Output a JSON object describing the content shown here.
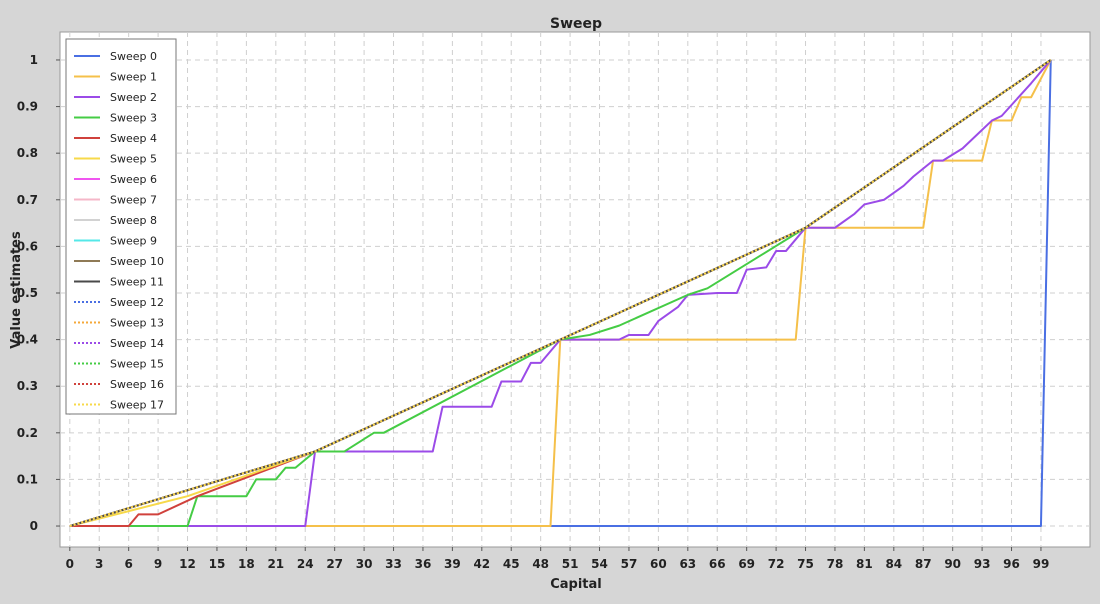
{
  "chart_data": {
    "type": "line",
    "title": "Sweep",
    "xlabel": "Capital",
    "ylabel": "Value estimates",
    "xlim": [
      -1,
      104
    ],
    "ylim": [
      -0.045,
      1.06
    ],
    "x_ticks": [
      0,
      3,
      6,
      9,
      12,
      15,
      18,
      21,
      24,
      27,
      30,
      33,
      36,
      39,
      42,
      45,
      48,
      51,
      54,
      57,
      60,
      63,
      66,
      69,
      72,
      75,
      78,
      81,
      84,
      87,
      90,
      93,
      96,
      99
    ],
    "y_ticks": [
      0,
      0.1,
      0.2,
      0.3,
      0.4,
      0.5,
      0.6,
      0.7,
      0.8,
      0.9,
      1
    ],
    "y_tick_labels": [
      "0",
      "0.1",
      "0.2",
      "0.3",
      "0.4",
      "0.5",
      "0.6",
      "0.7",
      "0.8",
      "0.9",
      "1"
    ],
    "grid": true,
    "legend_position": "top-left",
    "series": [
      {
        "name": "Sweep 0",
        "color": "#4a6fe3",
        "dashed": false,
        "points": [
          [
            0,
            0
          ],
          [
            99,
            0
          ],
          [
            100,
            1
          ]
        ]
      },
      {
        "name": "Sweep 1",
        "color": "#f5c04a",
        "dashed": false,
        "points": [
          [
            0,
            0
          ],
          [
            49,
            0
          ],
          [
            50,
            0.4
          ],
          [
            74,
            0.4
          ],
          [
            75,
            0.64
          ],
          [
            87,
            0.64
          ],
          [
            88,
            0.784
          ],
          [
            93,
            0.784
          ],
          [
            94,
            0.87
          ],
          [
            96,
            0.87
          ],
          [
            97,
            0.92
          ],
          [
            98,
            0.92
          ],
          [
            100,
            1
          ]
        ]
      },
      {
        "name": "Sweep 2",
        "color": "#9b4be8",
        "dashed": false,
        "points": [
          [
            0,
            0
          ],
          [
            24,
            0
          ],
          [
            25,
            0.16
          ],
          [
            37,
            0.16
          ],
          [
            38,
            0.256
          ],
          [
            43,
            0.256
          ],
          [
            44,
            0.31
          ],
          [
            46,
            0.31
          ],
          [
            47,
            0.35
          ],
          [
            48,
            0.35
          ],
          [
            50,
            0.4
          ],
          [
            56,
            0.4
          ],
          [
            57,
            0.41
          ],
          [
            59,
            0.41
          ],
          [
            60,
            0.44
          ],
          [
            62,
            0.47
          ],
          [
            63,
            0.496
          ],
          [
            66,
            0.5
          ],
          [
            68,
            0.5
          ],
          [
            69,
            0.55
          ],
          [
            71,
            0.555
          ],
          [
            72,
            0.59
          ],
          [
            73,
            0.59
          ],
          [
            75,
            0.64
          ],
          [
            78,
            0.64
          ],
          [
            80,
            0.67
          ],
          [
            81,
            0.69
          ],
          [
            83,
            0.7
          ],
          [
            85,
            0.73
          ],
          [
            86,
            0.75
          ],
          [
            88,
            0.784
          ],
          [
            89,
            0.784
          ],
          [
            91,
            0.81
          ],
          [
            94,
            0.87
          ],
          [
            95,
            0.88
          ],
          [
            98,
            0.95
          ],
          [
            100,
            1
          ]
        ]
      },
      {
        "name": "Sweep 3",
        "color": "#45cc45",
        "dashed": false,
        "points": [
          [
            0,
            0
          ],
          [
            12,
            0
          ],
          [
            13,
            0.064
          ],
          [
            18,
            0.064
          ],
          [
            19,
            0.1
          ],
          [
            21,
            0.1
          ],
          [
            22,
            0.125
          ],
          [
            23,
            0.125
          ],
          [
            25,
            0.16
          ],
          [
            28,
            0.16
          ],
          [
            31,
            0.2
          ],
          [
            32,
            0.2
          ],
          [
            50,
            0.4
          ],
          [
            53,
            0.41
          ],
          [
            56,
            0.43
          ],
          [
            63,
            0.496
          ],
          [
            65,
            0.51
          ],
          [
            75,
            0.64
          ],
          [
            100,
            1
          ]
        ]
      },
      {
        "name": "Sweep 4",
        "color": "#d0413c",
        "dashed": false,
        "points": [
          [
            0,
            0
          ],
          [
            6,
            0
          ],
          [
            7,
            0.025
          ],
          [
            9,
            0.025
          ],
          [
            13,
            0.064
          ],
          [
            25,
            0.16
          ],
          [
            50,
            0.4
          ],
          [
            75,
            0.64
          ],
          [
            100,
            1
          ]
        ]
      },
      {
        "name": "Sweep 5",
        "color": "#f7d94a",
        "dashed": false,
        "points": [
          [
            0,
            0
          ],
          [
            12,
            0.064
          ],
          [
            25,
            0.16
          ],
          [
            50,
            0.4
          ],
          [
            75,
            0.64
          ],
          [
            100,
            1
          ]
        ]
      },
      {
        "name": "Sweep 6",
        "color": "#f055f0",
        "dashed": false,
        "points": [
          [
            0,
            0
          ],
          [
            25,
            0.16
          ],
          [
            50,
            0.4
          ],
          [
            75,
            0.64
          ],
          [
            100,
            1
          ]
        ]
      },
      {
        "name": "Sweep 7",
        "color": "#f5b7c8",
        "dashed": false,
        "points": [
          [
            0,
            0
          ],
          [
            25,
            0.16
          ],
          [
            50,
            0.4
          ],
          [
            75,
            0.64
          ],
          [
            100,
            1
          ]
        ]
      },
      {
        "name": "Sweep 8",
        "color": "#d2d2d2",
        "dashed": false,
        "points": [
          [
            0,
            0
          ],
          [
            25,
            0.16
          ],
          [
            50,
            0.4
          ],
          [
            75,
            0.64
          ],
          [
            100,
            1
          ]
        ]
      },
      {
        "name": "Sweep 9",
        "color": "#55e8e8",
        "dashed": false,
        "points": [
          [
            0,
            0
          ],
          [
            25,
            0.16
          ],
          [
            50,
            0.4
          ],
          [
            75,
            0.64
          ],
          [
            100,
            1
          ]
        ]
      },
      {
        "name": "Sweep 10",
        "color": "#8f7a56",
        "dashed": false,
        "points": [
          [
            0,
            0
          ],
          [
            25,
            0.16
          ],
          [
            50,
            0.4
          ],
          [
            75,
            0.64
          ],
          [
            100,
            1
          ]
        ]
      },
      {
        "name": "Sweep 11",
        "color": "#4a4a4a",
        "dashed": false,
        "points": [
          [
            0,
            0
          ],
          [
            25,
            0.16
          ],
          [
            50,
            0.4
          ],
          [
            75,
            0.64
          ],
          [
            100,
            1
          ]
        ]
      },
      {
        "name": "Sweep 12",
        "color": "#4a6fe3",
        "dashed": true,
        "points": [
          [
            0,
            0
          ],
          [
            25,
            0.16
          ],
          [
            50,
            0.4
          ],
          [
            75,
            0.64
          ],
          [
            100,
            1
          ]
        ]
      },
      {
        "name": "Sweep 13",
        "color": "#f5a83a",
        "dashed": true,
        "points": [
          [
            0,
            0
          ],
          [
            25,
            0.16
          ],
          [
            50,
            0.4
          ],
          [
            75,
            0.64
          ],
          [
            100,
            1
          ]
        ]
      },
      {
        "name": "Sweep 14",
        "color": "#9b4be8",
        "dashed": true,
        "points": [
          [
            0,
            0
          ],
          [
            25,
            0.16
          ],
          [
            50,
            0.4
          ],
          [
            75,
            0.64
          ],
          [
            100,
            1
          ]
        ]
      },
      {
        "name": "Sweep 15",
        "color": "#45cc45",
        "dashed": true,
        "points": [
          [
            0,
            0
          ],
          [
            25,
            0.16
          ],
          [
            50,
            0.4
          ],
          [
            75,
            0.64
          ],
          [
            100,
            1
          ]
        ]
      },
      {
        "name": "Sweep 16",
        "color": "#d0413c",
        "dashed": true,
        "points": [
          [
            0,
            0
          ],
          [
            25,
            0.16
          ],
          [
            50,
            0.4
          ],
          [
            75,
            0.64
          ],
          [
            100,
            1
          ]
        ]
      },
      {
        "name": "Sweep 17",
        "color": "#f7d94a",
        "dashed": true,
        "points": [
          [
            0,
            0
          ],
          [
            25,
            0.16
          ],
          [
            50,
            0.4
          ],
          [
            75,
            0.64
          ],
          [
            100,
            1
          ]
        ]
      }
    ]
  }
}
